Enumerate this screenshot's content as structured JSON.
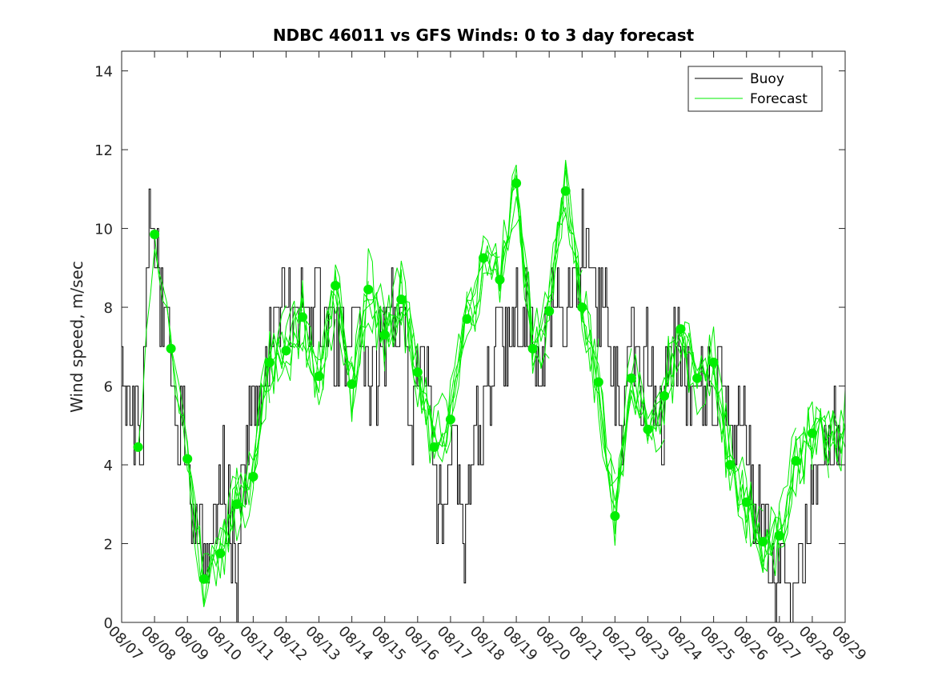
{
  "chart_data": {
    "type": "line",
    "title": "NDBC 46011 vs GFS Winds: 0 to 3 day forecast",
    "xlabel": "",
    "ylabel": "Wind speed, m/sec",
    "xlim": [
      0,
      22
    ],
    "ylim": [
      0,
      14.5
    ],
    "y_ticks": [
      0,
      2,
      4,
      6,
      8,
      10,
      12,
      14
    ],
    "x_tick_labels": [
      "08/07",
      "08/08",
      "08/09",
      "08/10",
      "08/11",
      "08/12",
      "08/13",
      "08/14",
      "08/15",
      "08/16",
      "08/17",
      "08/18",
      "08/19",
      "08/20",
      "08/21",
      "08/22",
      "08/23",
      "08/24",
      "08/25",
      "08/26",
      "08/27",
      "08/28",
      "08/29"
    ],
    "legend": [
      "Buoy",
      "Forecast"
    ],
    "legend_position": "top-right",
    "colors": {
      "buoy": "#000000",
      "forecast": "#00ee00",
      "axis": "#262626"
    },
    "buoy_anchors": [
      [
        0,
        7
      ],
      [
        0.1,
        5
      ],
      [
        0.35,
        5.5
      ],
      [
        0.5,
        4.5
      ],
      [
        0.6,
        3.5
      ],
      [
        0.75,
        9
      ],
      [
        0.9,
        10.5
      ],
      [
        1.0,
        10
      ],
      [
        1.1,
        8.5
      ],
      [
        1.3,
        7.5
      ],
      [
        1.5,
        7
      ],
      [
        1.7,
        5
      ],
      [
        1.9,
        4.5
      ],
      [
        2.0,
        3.5
      ],
      [
        2.2,
        2.5
      ],
      [
        2.4,
        2
      ],
      [
        2.5,
        1.5
      ],
      [
        2.7,
        1.5
      ],
      [
        2.8,
        2
      ],
      [
        2.9,
        3.5
      ],
      [
        3.1,
        3.5
      ],
      [
        3.2,
        3
      ],
      [
        3.4,
        2
      ],
      [
        3.5,
        0.5
      ],
      [
        3.55,
        2
      ],
      [
        3.7,
        3.5
      ],
      [
        3.85,
        5
      ],
      [
        4.1,
        5.5
      ],
      [
        4.3,
        6
      ],
      [
        4.5,
        7
      ],
      [
        4.7,
        8
      ],
      [
        5.0,
        8.5
      ],
      [
        5.3,
        7.5
      ],
      [
        5.6,
        8
      ],
      [
        6.0,
        8
      ],
      [
        6.3,
        7.5
      ],
      [
        6.5,
        7
      ],
      [
        6.8,
        7
      ],
      [
        7.0,
        8
      ],
      [
        7.3,
        7
      ],
      [
        7.6,
        6
      ],
      [
        7.9,
        7
      ],
      [
        8.2,
        8
      ],
      [
        8.5,
        7.5
      ],
      [
        8.8,
        5
      ],
      [
        9.0,
        6
      ],
      [
        9.3,
        6.5
      ],
      [
        9.5,
        4
      ],
      [
        9.7,
        2.5
      ],
      [
        9.85,
        3
      ],
      [
        10.0,
        5
      ],
      [
        10.2,
        4
      ],
      [
        10.35,
        2
      ],
      [
        10.5,
        3
      ],
      [
        10.7,
        5.5
      ],
      [
        10.9,
        4.5
      ],
      [
        11.1,
        6
      ],
      [
        11.3,
        6.5
      ],
      [
        11.5,
        7.5
      ],
      [
        11.7,
        7
      ],
      [
        11.9,
        8
      ],
      [
        12.1,
        7.5
      ],
      [
        12.3,
        8.5
      ],
      [
        12.5,
        7
      ],
      [
        12.7,
        6
      ],
      [
        12.9,
        7.5
      ],
      [
        13.1,
        8
      ],
      [
        13.4,
        7.5
      ],
      [
        13.6,
        8.5
      ],
      [
        13.8,
        9
      ],
      [
        14.0,
        10
      ],
      [
        14.2,
        9
      ],
      [
        14.4,
        8
      ],
      [
        14.6,
        8.5
      ],
      [
        14.8,
        7.5
      ],
      [
        15.0,
        6
      ],
      [
        15.2,
        5
      ],
      [
        15.4,
        6.5
      ],
      [
        15.6,
        7
      ],
      [
        15.8,
        6
      ],
      [
        16.0,
        7
      ],
      [
        16.2,
        5.5
      ],
      [
        16.4,
        4.5
      ],
      [
        16.6,
        6.5
      ],
      [
        16.8,
        7
      ],
      [
        17.0,
        6.5
      ],
      [
        17.2,
        6
      ],
      [
        17.4,
        5.5
      ],
      [
        17.6,
        6.5
      ],
      [
        17.8,
        6
      ],
      [
        18.0,
        5.5
      ],
      [
        18.2,
        6.5
      ],
      [
        18.4,
        6
      ],
      [
        18.6,
        5
      ],
      [
        18.8,
        6
      ],
      [
        19.0,
        4.5
      ],
      [
        19.2,
        3.5
      ],
      [
        19.4,
        2.5
      ],
      [
        19.6,
        2
      ],
      [
        19.8,
        1
      ],
      [
        20.0,
        1.5
      ],
      [
        20.2,
        1
      ],
      [
        20.4,
        0.5
      ],
      [
        20.6,
        1
      ],
      [
        20.8,
        2.5
      ],
      [
        21.0,
        3.5
      ],
      [
        21.2,
        3.5
      ],
      [
        21.4,
        4
      ],
      [
        21.6,
        4.5
      ],
      [
        21.8,
        4.5
      ],
      [
        22.0,
        5
      ]
    ],
    "forecast_markers": [
      [
        0.5,
        4.45
      ],
      [
        1.0,
        9.85
      ],
      [
        1.5,
        6.95
      ],
      [
        2.0,
        4.15
      ],
      [
        2.5,
        1.1
      ],
      [
        3.0,
        1.75
      ],
      [
        3.5,
        3.0
      ],
      [
        4.0,
        3.7
      ],
      [
        4.5,
        6.6
      ],
      [
        5.0,
        6.9
      ],
      [
        5.5,
        7.75
      ],
      [
        6.0,
        6.25
      ],
      [
        6.5,
        8.55
      ],
      [
        7.0,
        6.05
      ],
      [
        7.5,
        8.45
      ],
      [
        8.0,
        7.3
      ],
      [
        8.5,
        8.2
      ],
      [
        9.0,
        6.35
      ],
      [
        9.5,
        4.45
      ],
      [
        10.0,
        5.15
      ],
      [
        10.5,
        7.7
      ],
      [
        11.0,
        9.25
      ],
      [
        11.5,
        8.7
      ],
      [
        12.0,
        11.15
      ],
      [
        12.5,
        6.95
      ],
      [
        13.0,
        7.9
      ],
      [
        13.5,
        10.95
      ],
      [
        14.0,
        8.0
      ],
      [
        14.5,
        6.1
      ],
      [
        15.0,
        2.7
      ],
      [
        15.5,
        6.2
      ],
      [
        16.0,
        4.9
      ],
      [
        16.5,
        5.75
      ],
      [
        17.0,
        7.45
      ],
      [
        17.5,
        6.2
      ],
      [
        18.0,
        6.6
      ],
      [
        18.5,
        4.0
      ],
      [
        19.0,
        3.05
      ],
      [
        19.5,
        2.05
      ],
      [
        20.0,
        2.2
      ],
      [
        20.5,
        4.1
      ],
      [
        21.0,
        4.8
      ]
    ]
  }
}
